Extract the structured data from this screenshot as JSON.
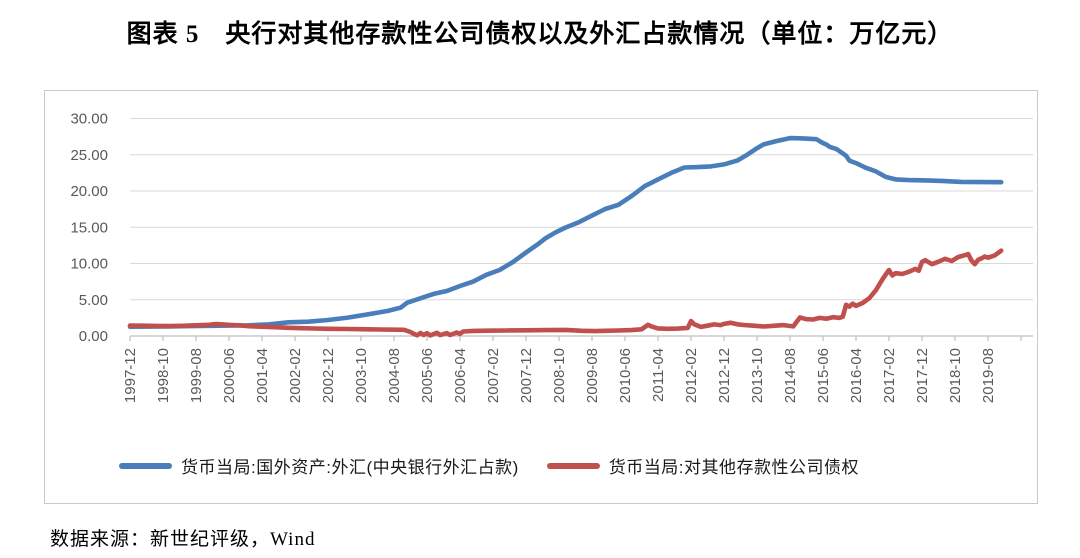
{
  "title": "图表 5　央行对其他存款性公司债权以及外汇占款情况（单位：万亿元）",
  "source": "数据来源：新世纪评级，Wind",
  "colors": {
    "grid": "#d9d9d9",
    "axis": "#bfbfbf",
    "tick_label": "#595959",
    "series_blue": "#4a7ebb",
    "series_red": "#c0504d"
  },
  "chart_data": {
    "type": "line",
    "title": "央行对其他存款性公司债权以及外汇占款情况",
    "unit": "万亿元",
    "grid": true,
    "legend_position": "bottom",
    "ylim": [
      0,
      30
    ],
    "y_tick_labels": [
      "0.00",
      "5.00",
      "10.00",
      "15.00",
      "20.00",
      "25.00",
      "30.00"
    ],
    "x_start_month": "1997-12",
    "x_label_interval_months": 10,
    "x_tick_labels": [
      "1997-12",
      "1998-10",
      "1999-08",
      "2000-06",
      "2001-04",
      "2002-02",
      "2002-12",
      "2003-10",
      "2004-08",
      "2005-06",
      "2006-04",
      "2007-02",
      "2007-12",
      "2008-10",
      "2009-08",
      "2010-06",
      "2011-04",
      "2012-02",
      "2012-12",
      "2013-10",
      "2014-08",
      "2015-06",
      "2016-04",
      "2017-02",
      "2017-12",
      "2018-10",
      "2019-08"
    ],
    "series": [
      {
        "name": "货币当局:国外资产:外汇(中央银行外汇占款)",
        "color": "#4a7ebb",
        "points": [
          [
            0,
            1.28
          ],
          [
            6,
            1.3
          ],
          [
            12,
            1.31
          ],
          [
            18,
            1.36
          ],
          [
            24,
            1.41
          ],
          [
            30,
            1.43
          ],
          [
            36,
            1.48
          ],
          [
            42,
            1.6
          ],
          [
            48,
            1.89
          ],
          [
            54,
            1.97
          ],
          [
            60,
            2.21
          ],
          [
            66,
            2.54
          ],
          [
            72,
            2.98
          ],
          [
            78,
            3.45
          ],
          [
            82,
            3.9
          ],
          [
            84,
            4.59
          ],
          [
            88,
            5.2
          ],
          [
            92,
            5.8
          ],
          [
            96,
            6.21
          ],
          [
            100,
            6.9
          ],
          [
            104,
            7.5
          ],
          [
            108,
            8.44
          ],
          [
            112,
            9.1
          ],
          [
            116,
            10.2
          ],
          [
            120,
            11.52
          ],
          [
            124,
            12.8
          ],
          [
            126,
            13.5
          ],
          [
            129,
            14.3
          ],
          [
            132,
            14.96
          ],
          [
            136,
            15.7
          ],
          [
            140,
            16.6
          ],
          [
            144,
            17.52
          ],
          [
            148,
            18.1
          ],
          [
            152,
            19.3
          ],
          [
            156,
            20.68
          ],
          [
            160,
            21.6
          ],
          [
            164,
            22.5
          ],
          [
            168,
            23.24
          ],
          [
            172,
            23.3
          ],
          [
            176,
            23.4
          ],
          [
            180,
            23.67
          ],
          [
            184,
            24.2
          ],
          [
            187,
            25.0
          ],
          [
            190,
            25.9
          ],
          [
            192,
            26.43
          ],
          [
            196,
            26.9
          ],
          [
            200,
            27.3
          ],
          [
            204,
            27.25
          ],
          [
            208,
            27.15
          ],
          [
            210,
            26.6
          ],
          [
            211,
            26.41
          ],
          [
            212,
            26.1
          ],
          [
            214,
            25.8
          ],
          [
            217,
            24.85
          ],
          [
            218,
            24.2
          ],
          [
            220,
            23.85
          ],
          [
            223,
            23.2
          ],
          [
            226,
            22.7
          ],
          [
            229,
            21.94
          ],
          [
            232,
            21.6
          ],
          [
            236,
            21.5
          ],
          [
            240,
            21.48
          ],
          [
            246,
            21.4
          ],
          [
            252,
            21.25
          ],
          [
            258,
            21.23
          ],
          [
            264,
            21.22
          ]
        ]
      },
      {
        "name": "货币当局:对其他存款性公司债权",
        "color": "#c0504d",
        "points": [
          [
            0,
            1.44
          ],
          [
            4,
            1.42
          ],
          [
            8,
            1.39
          ],
          [
            12,
            1.37
          ],
          [
            16,
            1.41
          ],
          [
            20,
            1.47
          ],
          [
            24,
            1.54
          ],
          [
            26,
            1.66
          ],
          [
            28,
            1.6
          ],
          [
            31,
            1.52
          ],
          [
            34,
            1.44
          ],
          [
            36,
            1.35
          ],
          [
            40,
            1.28
          ],
          [
            44,
            1.21
          ],
          [
            48,
            1.13
          ],
          [
            52,
            1.08
          ],
          [
            56,
            1.04
          ],
          [
            60,
            1.0
          ],
          [
            66,
            0.96
          ],
          [
            72,
            0.92
          ],
          [
            76,
            0.89
          ],
          [
            80,
            0.87
          ],
          [
            83,
            0.85
          ],
          [
            85,
            0.55
          ],
          [
            86,
            0.3
          ],
          [
            87,
            0.1
          ],
          [
            88,
            0.42
          ],
          [
            89,
            0.14
          ],
          [
            90,
            0.38
          ],
          [
            91,
            0.08
          ],
          [
            93,
            0.44
          ],
          [
            94,
            0.12
          ],
          [
            96,
            0.4
          ],
          [
            97,
            0.14
          ],
          [
            99,
            0.48
          ],
          [
            100,
            0.3
          ],
          [
            101,
            0.62
          ],
          [
            104,
            0.7
          ],
          [
            108,
            0.73
          ],
          [
            114,
            0.76
          ],
          [
            120,
            0.79
          ],
          [
            126,
            0.82
          ],
          [
            132,
            0.84
          ],
          [
            137,
            0.72
          ],
          [
            141,
            0.68
          ],
          [
            144,
            0.72
          ],
          [
            148,
            0.76
          ],
          [
            152,
            0.82
          ],
          [
            155,
            0.92
          ],
          [
            157,
            1.55
          ],
          [
            158,
            1.32
          ],
          [
            160,
            1.05
          ],
          [
            163,
            1.0
          ],
          [
            166,
            1.02
          ],
          [
            169,
            1.1
          ],
          [
            170,
            2.05
          ],
          [
            171,
            1.62
          ],
          [
            173,
            1.25
          ],
          [
            175,
            1.42
          ],
          [
            177,
            1.6
          ],
          [
            179,
            1.5
          ],
          [
            180,
            1.67
          ],
          [
            182,
            1.82
          ],
          [
            184,
            1.62
          ],
          [
            186,
            1.52
          ],
          [
            189,
            1.42
          ],
          [
            192,
            1.31
          ],
          [
            195,
            1.4
          ],
          [
            198,
            1.5
          ],
          [
            201,
            1.32
          ],
          [
            203,
            2.55
          ],
          [
            205,
            2.32
          ],
          [
            207,
            2.28
          ],
          [
            209,
            2.5
          ],
          [
            211,
            2.38
          ],
          [
            213,
            2.6
          ],
          [
            215,
            2.5
          ],
          [
            216,
            2.66
          ],
          [
            217,
            4.3
          ],
          [
            218,
            4.05
          ],
          [
            219,
            4.45
          ],
          [
            220,
            4.15
          ],
          [
            222,
            4.55
          ],
          [
            224,
            5.2
          ],
          [
            226,
            6.3
          ],
          [
            228,
            7.8
          ],
          [
            229,
            8.47
          ],
          [
            230,
            9.1
          ],
          [
            231,
            8.35
          ],
          [
            232,
            8.66
          ],
          [
            234,
            8.55
          ],
          [
            236,
            8.85
          ],
          [
            238,
            9.25
          ],
          [
            239,
            9.0
          ],
          [
            240,
            10.22
          ],
          [
            241,
            10.45
          ],
          [
            243,
            9.9
          ],
          [
            245,
            10.25
          ],
          [
            247,
            10.65
          ],
          [
            249,
            10.35
          ],
          [
            251,
            10.9
          ],
          [
            253,
            11.15
          ],
          [
            254,
            11.3
          ],
          [
            255,
            10.4
          ],
          [
            256,
            9.9
          ],
          [
            257,
            10.5
          ],
          [
            258,
            10.7
          ],
          [
            259,
            10.95
          ],
          [
            260,
            10.8
          ],
          [
            261,
            10.95
          ],
          [
            262,
            11.1
          ],
          [
            264,
            11.77
          ]
        ]
      }
    ]
  }
}
